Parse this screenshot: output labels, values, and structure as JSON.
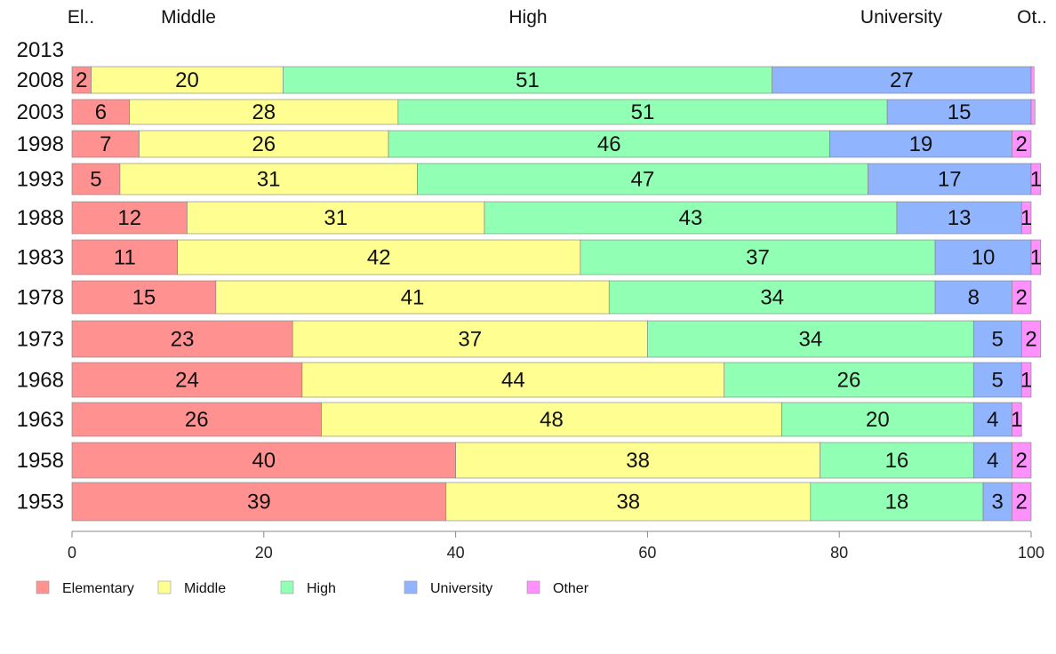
{
  "chart_data": {
    "type": "bar",
    "orientation": "horizontal",
    "stacked": true,
    "categories": [
      "2013",
      "2008",
      "2003",
      "1998",
      "1993",
      "1988",
      "1983",
      "1978",
      "1973",
      "1968",
      "1963",
      "1958",
      "1953"
    ],
    "series": [
      {
        "name": "Elementary",
        "color": "#ff9191",
        "values": [
          null,
          2,
          6,
          7,
          5,
          12,
          11,
          15,
          23,
          24,
          26,
          40,
          39
        ]
      },
      {
        "name": "Middle",
        "color": "#ffff91",
        "values": [
          null,
          20,
          28,
          26,
          31,
          31,
          42,
          41,
          37,
          44,
          48,
          38,
          38
        ]
      },
      {
        "name": "High",
        "color": "#91ffb4",
        "values": [
          null,
          51,
          51,
          46,
          47,
          43,
          37,
          34,
          34,
          26,
          20,
          16,
          18
        ]
      },
      {
        "name": "University",
        "color": "#91b4ff",
        "values": [
          null,
          27,
          15,
          19,
          17,
          13,
          10,
          8,
          5,
          5,
          4,
          4,
          3
        ]
      },
      {
        "name": "Other",
        "color": "#ff91ff",
        "values": [
          null,
          0.3,
          0.4,
          2,
          1,
          1,
          1,
          2,
          2,
          1,
          1,
          2,
          2
        ]
      }
    ],
    "label_texts": [
      [
        null,
        null,
        null,
        null,
        null
      ],
      [
        "2",
        "20",
        "51",
        "27",
        null
      ],
      [
        "6",
        "28",
        "51",
        "15",
        null
      ],
      [
        "7",
        "26",
        "46",
        "19",
        "2"
      ],
      [
        "5",
        "31",
        "47",
        "17",
        "1"
      ],
      [
        "12",
        "31",
        "43",
        "13",
        "1"
      ],
      [
        "11",
        "42",
        "37",
        "10",
        "1"
      ],
      [
        "15",
        "41",
        "34",
        "8",
        "2"
      ],
      [
        "23",
        "37",
        "34",
        "5",
        "2"
      ],
      [
        "24",
        "44",
        "26",
        "5",
        "1"
      ],
      [
        "26",
        "48",
        "20",
        "4",
        "1"
      ],
      [
        "40",
        "38",
        "16",
        "4",
        "2"
      ],
      [
        "39",
        "38",
        "18",
        "3",
        "2"
      ]
    ],
    "top_labels": [
      "El..",
      "Middle",
      "High",
      "University",
      "Ot.."
    ],
    "xlim": [
      0,
      100
    ],
    "xticks": [
      "0",
      "20",
      "40",
      "60",
      "80",
      "100"
    ],
    "grid": false,
    "legend_position": "bottom-left"
  }
}
